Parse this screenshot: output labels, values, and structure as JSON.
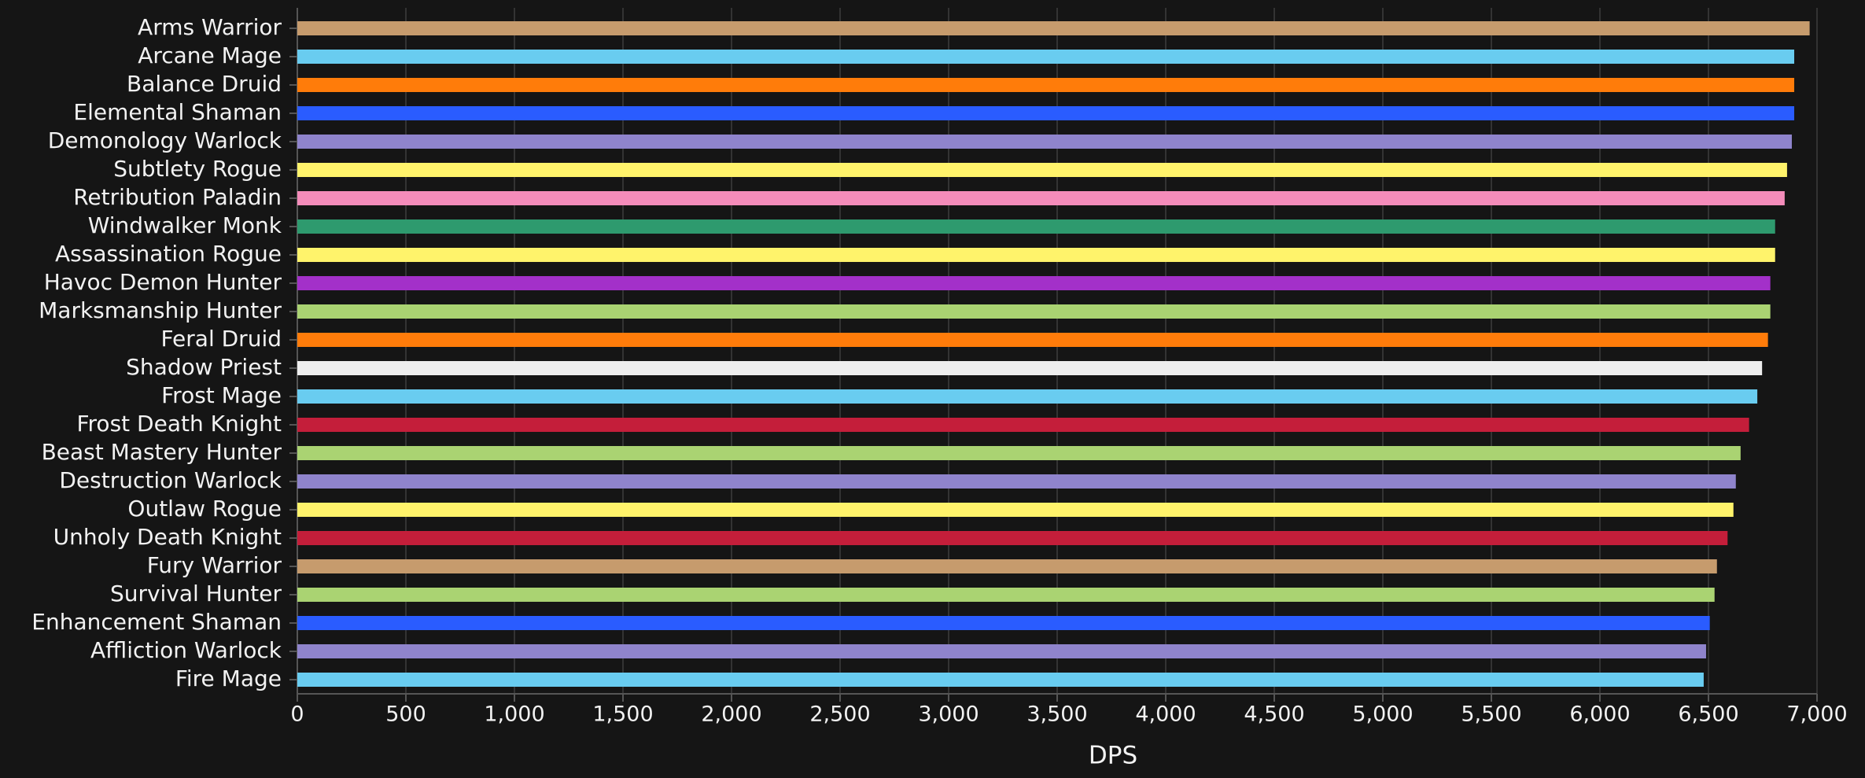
{
  "chart_data": {
    "type": "barh",
    "x_label": "DPS",
    "categories": [
      "Arms Warrior",
      "Arcane Mage",
      "Balance Druid",
      "Elemental Shaman",
      "Demonology Warlock",
      "Subtlety Rogue",
      "Retribution Paladin",
      "Windwalker Monk",
      "Assassination Rogue",
      "Havoc Demon Hunter",
      "Marksmanship Hunter",
      "Feral Druid",
      "Shadow Priest",
      "Frost Mage",
      "Frost Death Knight",
      "Beast Mastery Hunter",
      "Destruction Warlock",
      "Outlaw Rogue",
      "Unholy Death Knight",
      "Fury Warrior",
      "Survival Hunter",
      "Enhancement Shaman",
      "Affliction Warlock",
      "Fire Mage"
    ],
    "values": [
      6966,
      6895,
      6895,
      6895,
      6884,
      6862,
      6851,
      6807,
      6807,
      6785,
      6785,
      6774,
      6747,
      6725,
      6687,
      6648,
      6626,
      6615,
      6588,
      6539,
      6528,
      6506,
      6489,
      6478
    ],
    "colors": [
      "#c69b6d",
      "#69ccf0",
      "#ff7c0a",
      "#2a5cff",
      "#8f84cc",
      "#fff36b",
      "#f48cba",
      "#2e9a6e",
      "#fff36b",
      "#a330c9",
      "#aad372",
      "#ff7c0a",
      "#eeeeee",
      "#69ccf0",
      "#c41e3a",
      "#aad372",
      "#8f84cc",
      "#fff36b",
      "#c41e3a",
      "#c69b6d",
      "#aad372",
      "#2a5cff",
      "#8f84cc",
      "#69ccf0"
    ],
    "xlim": [
      0,
      7000
    ],
    "xticks": [
      0,
      500,
      {
        "value": 1000,
        "label": "1,000"
      },
      {
        "value": 1500,
        "label": "1,500"
      },
      {
        "value": 2000,
        "label": "2,000"
      },
      {
        "value": 2500,
        "label": "2,500"
      },
      {
        "value": 3000,
        "label": "3,000"
      },
      {
        "value": 3500,
        "label": "3,500"
      },
      {
        "value": 4000,
        "label": "4,000"
      },
      {
        "value": 4500,
        "label": "4,500"
      },
      {
        "value": 5000,
        "label": "5,000"
      },
      {
        "value": 5500,
        "label": "5,500"
      },
      {
        "value": 6000,
        "label": "6,000"
      },
      {
        "value": 6500,
        "label": "6,500"
      },
      {
        "value": 7000,
        "label": "7,000"
      }
    ],
    "grid": true
  }
}
